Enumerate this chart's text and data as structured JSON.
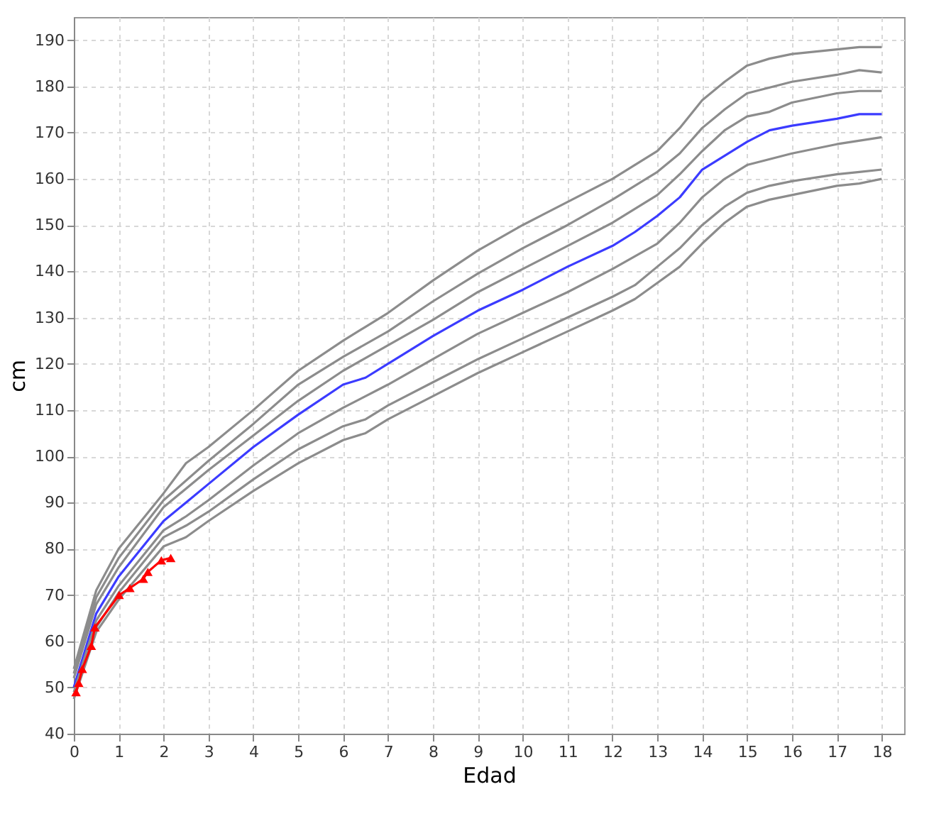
{
  "chart_data": {
    "type": "line",
    "xlabel": "Edad",
    "ylabel": "cm",
    "xlim": [
      0,
      18.5
    ],
    "ylim": [
      40,
      195
    ],
    "xticks": [
      0,
      1,
      2,
      3,
      4,
      5,
      6,
      7,
      8,
      9,
      10,
      11,
      12,
      13,
      14,
      15,
      16,
      17,
      18
    ],
    "yticks": [
      40,
      50,
      60,
      70,
      80,
      90,
      100,
      110,
      120,
      130,
      140,
      150,
      160,
      170,
      180,
      190
    ],
    "grid": true,
    "line_style": "solid",
    "series": [
      {
        "color": "#8c8c8c",
        "x": [
          0,
          0.5,
          1,
          2,
          2.5,
          3,
          4,
          5,
          6,
          6.5,
          7,
          8,
          9,
          10,
          11,
          12,
          13,
          13.5,
          14,
          14.5,
          15,
          15.5,
          16,
          17,
          17.5,
          18
        ],
        "values": [
          54,
          71,
          80,
          92,
          98.5,
          102,
          110,
          118.5,
          125,
          128,
          131,
          138,
          144.5,
          150,
          155,
          160,
          166,
          171,
          177,
          181,
          184.5,
          186,
          187,
          188,
          188.5,
          188.5
        ]
      },
      {
        "color": "#8c8c8c",
        "x": [
          0,
          0.5,
          1,
          2,
          3,
          4,
          5,
          6,
          7,
          8,
          9,
          10,
          11,
          12,
          13,
          13.5,
          14,
          14.5,
          15,
          16,
          17,
          17.5,
          18
        ],
        "values": [
          53,
          69.5,
          78,
          90.5,
          99,
          107,
          115.5,
          121.5,
          127,
          133.5,
          139.5,
          145,
          150,
          155.5,
          161.5,
          165.5,
          171,
          175,
          178.5,
          181,
          182.5,
          183.5,
          183
        ]
      },
      {
        "color": "#8c8c8c",
        "x": [
          0,
          0.5,
          1,
          2,
          3,
          4,
          5,
          6,
          7,
          8,
          9,
          10,
          11,
          12,
          13,
          13.5,
          14,
          14.5,
          15,
          15.5,
          16,
          17,
          17.5,
          18
        ],
        "values": [
          52,
          68,
          76,
          89,
          97,
          104.5,
          112,
          118.5,
          124,
          129.5,
          135.5,
          140.5,
          145.5,
          150.5,
          156.5,
          161,
          166,
          170.5,
          173.5,
          174.5,
          176.5,
          178.5,
          179,
          179
        ]
      },
      {
        "color": "#3b3bff",
        "x": [
          0,
          0.5,
          1,
          2,
          2.5,
          3,
          4,
          5,
          6,
          6.5,
          7,
          8,
          9,
          10,
          11,
          12,
          12.5,
          13,
          13.5,
          14,
          15,
          15.5,
          16,
          17,
          17.5,
          18
        ],
        "values": [
          50,
          66,
          74,
          86,
          90,
          94,
          102,
          109,
          115.5,
          117,
          120,
          126,
          131.5,
          136,
          141,
          145.5,
          148.5,
          152,
          156,
          162,
          168,
          170.5,
          171.5,
          173,
          174,
          174
        ]
      },
      {
        "color": "#8c8c8c",
        "x": [
          0,
          0.5,
          1,
          2,
          2.5,
          3,
          4,
          5,
          6,
          7,
          8,
          9,
          10,
          11,
          12,
          13,
          13.5,
          14,
          14.5,
          15,
          16,
          17,
          18
        ],
        "values": [
          49,
          64.5,
          72,
          84,
          87,
          90.5,
          98,
          105,
          110.5,
          115.5,
          121,
          126.5,
          131,
          135.5,
          140.5,
          146,
          150.5,
          156,
          160,
          163,
          165.5,
          167.5,
          169
        ]
      },
      {
        "color": "#8c8c8c",
        "x": [
          0,
          0.5,
          1,
          2,
          2.5,
          3,
          4,
          5,
          6,
          6.5,
          7,
          8,
          9,
          10,
          11,
          12,
          12.5,
          13,
          13.5,
          14,
          14.5,
          15,
          15.5,
          16,
          17,
          17.5,
          18
        ],
        "values": [
          48,
          63,
          70.5,
          82.5,
          85,
          88,
          95,
          101.5,
          106.5,
          108,
          111,
          116,
          121,
          125.5,
          130,
          134.5,
          137,
          141,
          145,
          150,
          154,
          157,
          158.5,
          159.5,
          161,
          161.5,
          162
        ]
      },
      {
        "color": "#8c8c8c",
        "x": [
          0,
          0.5,
          1,
          2,
          2.5,
          3,
          4,
          5,
          6,
          6.5,
          7,
          8,
          9,
          10,
          11,
          12,
          12.5,
          13,
          13.5,
          14,
          14.5,
          15,
          15.5,
          16,
          17,
          17.5,
          18
        ],
        "values": [
          47.5,
          62,
          69,
          80.5,
          82.5,
          86,
          92.5,
          98.5,
          103.5,
          105,
          108,
          113,
          118,
          122.5,
          127,
          131.5,
          134,
          137.5,
          141,
          146,
          150.5,
          154,
          155.5,
          156.5,
          158.5,
          159,
          160
        ]
      },
      {
        "color": "#ff0000",
        "marker": "triangle",
        "x": [
          0.05,
          0.11,
          0.19,
          0.39,
          0.47,
          1.01,
          1.25,
          1.55,
          1.65,
          1.95,
          2.16
        ],
        "values": [
          49,
          51,
          54,
          59,
          63,
          70,
          71.5,
          73.5,
          75,
          77.5,
          78
        ]
      }
    ]
  }
}
